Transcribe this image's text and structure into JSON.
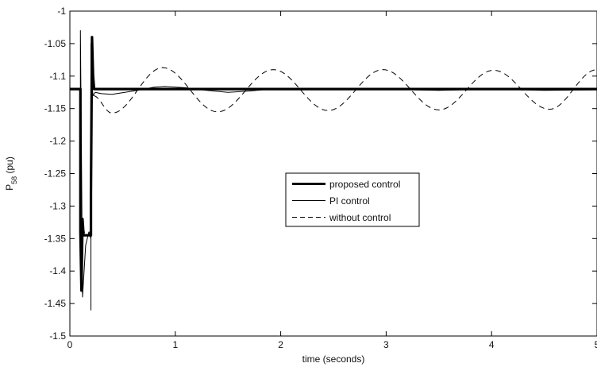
{
  "chart_data": {
    "type": "line",
    "title": "",
    "xlabel": "time (seconds)",
    "ylabel_main": "P",
    "ylabel_sub": "58",
    "ylabel_unit": " (pu)",
    "xlim": [
      0,
      5
    ],
    "ylim": [
      -1.5,
      -1
    ],
    "xticks": [
      0,
      1,
      2,
      3,
      4,
      5
    ],
    "xtick_labels": [
      "0",
      "1",
      "2",
      "3",
      "4",
      "5"
    ],
    "yticks": [
      -1,
      -1.05,
      -1.1,
      -1.15,
      -1.2,
      -1.25,
      -1.3,
      -1.35,
      -1.4,
      -1.45,
      -1.5
    ],
    "ytick_labels": [
      "-1",
      "-1.05",
      "-1.1",
      "-1.15",
      "-1.2",
      "-1.25",
      "-1.3",
      "-1.35",
      "-1.4",
      "-1.45",
      "-1.5"
    ],
    "grid": false,
    "legend_position": "center",
    "series": [
      {
        "name": "proposed control",
        "style": "thick-solid",
        "x": [
          0,
          0.1,
          0.1,
          0.11,
          0.12,
          0.13,
          0.15,
          0.2,
          0.2,
          0.21,
          0.22,
          0.23,
          0.25,
          0.3,
          5
        ],
        "y": [
          -1.12,
          -1.12,
          -1.34,
          -1.43,
          -1.32,
          -1.345,
          -1.345,
          -1.345,
          -1.28,
          -1.04,
          -1.1,
          -1.12,
          -1.12,
          -1.12,
          -1.12
        ]
      },
      {
        "name": "PI control",
        "style": "thin-solid",
        "x": [
          0,
          0.1,
          0.1,
          0.11,
          0.12,
          0.15,
          0.18,
          0.2,
          0.2,
          0.2,
          0.21,
          0.22,
          0.24,
          0.3,
          0.4,
          0.6,
          0.8,
          0.9,
          1.1,
          1.3,
          1.5,
          1.7,
          1.9,
          2.1,
          2.5,
          3.0,
          3.5,
          4.0,
          4.5,
          5.0
        ],
        "y": [
          -1.12,
          -1.12,
          -1.03,
          -1.22,
          -1.44,
          -1.36,
          -1.34,
          -1.35,
          -1.46,
          -1.05,
          -1.115,
          -1.13,
          -1.125,
          -1.127,
          -1.128,
          -1.123,
          -1.117,
          -1.116,
          -1.118,
          -1.122,
          -1.125,
          -1.123,
          -1.12,
          -1.121,
          -1.121,
          -1.12,
          -1.122,
          -1.12,
          -1.122,
          -1.121
        ]
      },
      {
        "name": "without control",
        "style": "dashed",
        "phase_x": [
          0.22,
          0.4,
          0.88,
          1.4,
          1.93,
          2.45,
          2.97,
          3.5,
          4.02,
          4.55,
          5.0
        ],
        "phase_y": [
          -1.13,
          -1.157,
          -1.087,
          -1.155,
          -1.09,
          -1.153,
          -1.09,
          -1.152,
          -1.091,
          -1.151,
          -1.09
        ]
      }
    ]
  },
  "legend": {
    "items": [
      {
        "label": "proposed control"
      },
      {
        "label": "PI control"
      },
      {
        "label": "without control"
      }
    ]
  }
}
